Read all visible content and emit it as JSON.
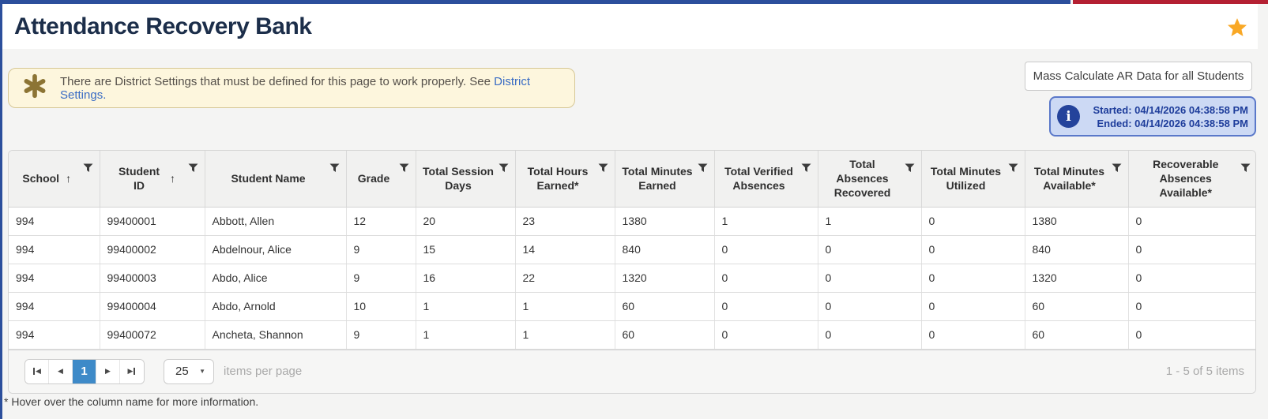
{
  "page": {
    "title": "Attendance Recovery Bank"
  },
  "notice": {
    "text": "There are District Settings that must be defined for this page to work properly. See ",
    "link_text": "District Settings",
    "suffix": "."
  },
  "actions": {
    "mass_calculate_label": "Mass Calculate AR Data for all Students",
    "status": {
      "started": "Started: 04/14/2026 04:38:58 PM",
      "ended": "Ended: 04/14/2026 04:38:58 PM"
    }
  },
  "table": {
    "columns": [
      {
        "label": "School",
        "sorted": true,
        "filter": true
      },
      {
        "label": "Student ID",
        "sorted": true,
        "filter": true
      },
      {
        "label": "Student Name",
        "sorted": false,
        "filter": true
      },
      {
        "label": "Grade",
        "sorted": false,
        "filter": true
      },
      {
        "label": "Total Session Days",
        "sorted": false,
        "filter": true
      },
      {
        "label": "Total Hours Earned*",
        "sorted": false,
        "filter": true
      },
      {
        "label": "Total Minutes Earned",
        "sorted": false,
        "filter": true
      },
      {
        "label": "Total Verified Absences",
        "sorted": false,
        "filter": true
      },
      {
        "label": "Total Absences Recovered",
        "sorted": false,
        "filter": true
      },
      {
        "label": "Total Minutes Utilized",
        "sorted": false,
        "filter": true
      },
      {
        "label": "Total Minutes Available*",
        "sorted": false,
        "filter": true
      },
      {
        "label": "Recoverable Absences Available*",
        "sorted": false,
        "filter": true
      }
    ],
    "rows": [
      [
        "994",
        "99400001",
        "Abbott, Allen",
        "12",
        "20",
        "23",
        "1380",
        "1",
        "1",
        "0",
        "1380",
        "0"
      ],
      [
        "994",
        "99400002",
        "Abdelnour, Alice",
        "9",
        "15",
        "14",
        "840",
        "0",
        "0",
        "0",
        "840",
        "0"
      ],
      [
        "994",
        "99400003",
        "Abdo, Alice",
        "9",
        "16",
        "22",
        "1320",
        "0",
        "0",
        "0",
        "1320",
        "0"
      ],
      [
        "994",
        "99400004",
        "Abdo, Arnold",
        "10",
        "1",
        "1",
        "60",
        "0",
        "0",
        "0",
        "60",
        "0"
      ],
      [
        "994",
        "99400072",
        "Ancheta, Shannon",
        "9",
        "1",
        "1",
        "60",
        "0",
        "0",
        "0",
        "60",
        "0"
      ]
    ]
  },
  "pagination": {
    "current_page": "1",
    "page_size": "25",
    "items_per_page_label": "items per page",
    "range_label": "1 - 5 of 5 items"
  },
  "footer": {
    "note": "* Hover over the column name for more information."
  },
  "icons": {
    "favorite": "star",
    "notice": "asterisk",
    "status": "info-circle",
    "column_filter": "funnel",
    "sort_ascending": "up-arrow"
  },
  "colors": {
    "accent-blue": "#2c4f9c",
    "accent-red": "#b42032",
    "title-navy": "#1c2e4a",
    "star-orange": "#f9a825",
    "notice-bg": "#fdf6dd",
    "notice-border": "#d6c795",
    "notice-icon": "#8c7434",
    "link-blue": "#3a6cc4",
    "info-bg": "#ccd9f4",
    "info-border": "#5a78c9",
    "info-icon-bg": "#24439b",
    "info-text": "#1e3d9b",
    "pager-active": "#3e8ac8"
  }
}
